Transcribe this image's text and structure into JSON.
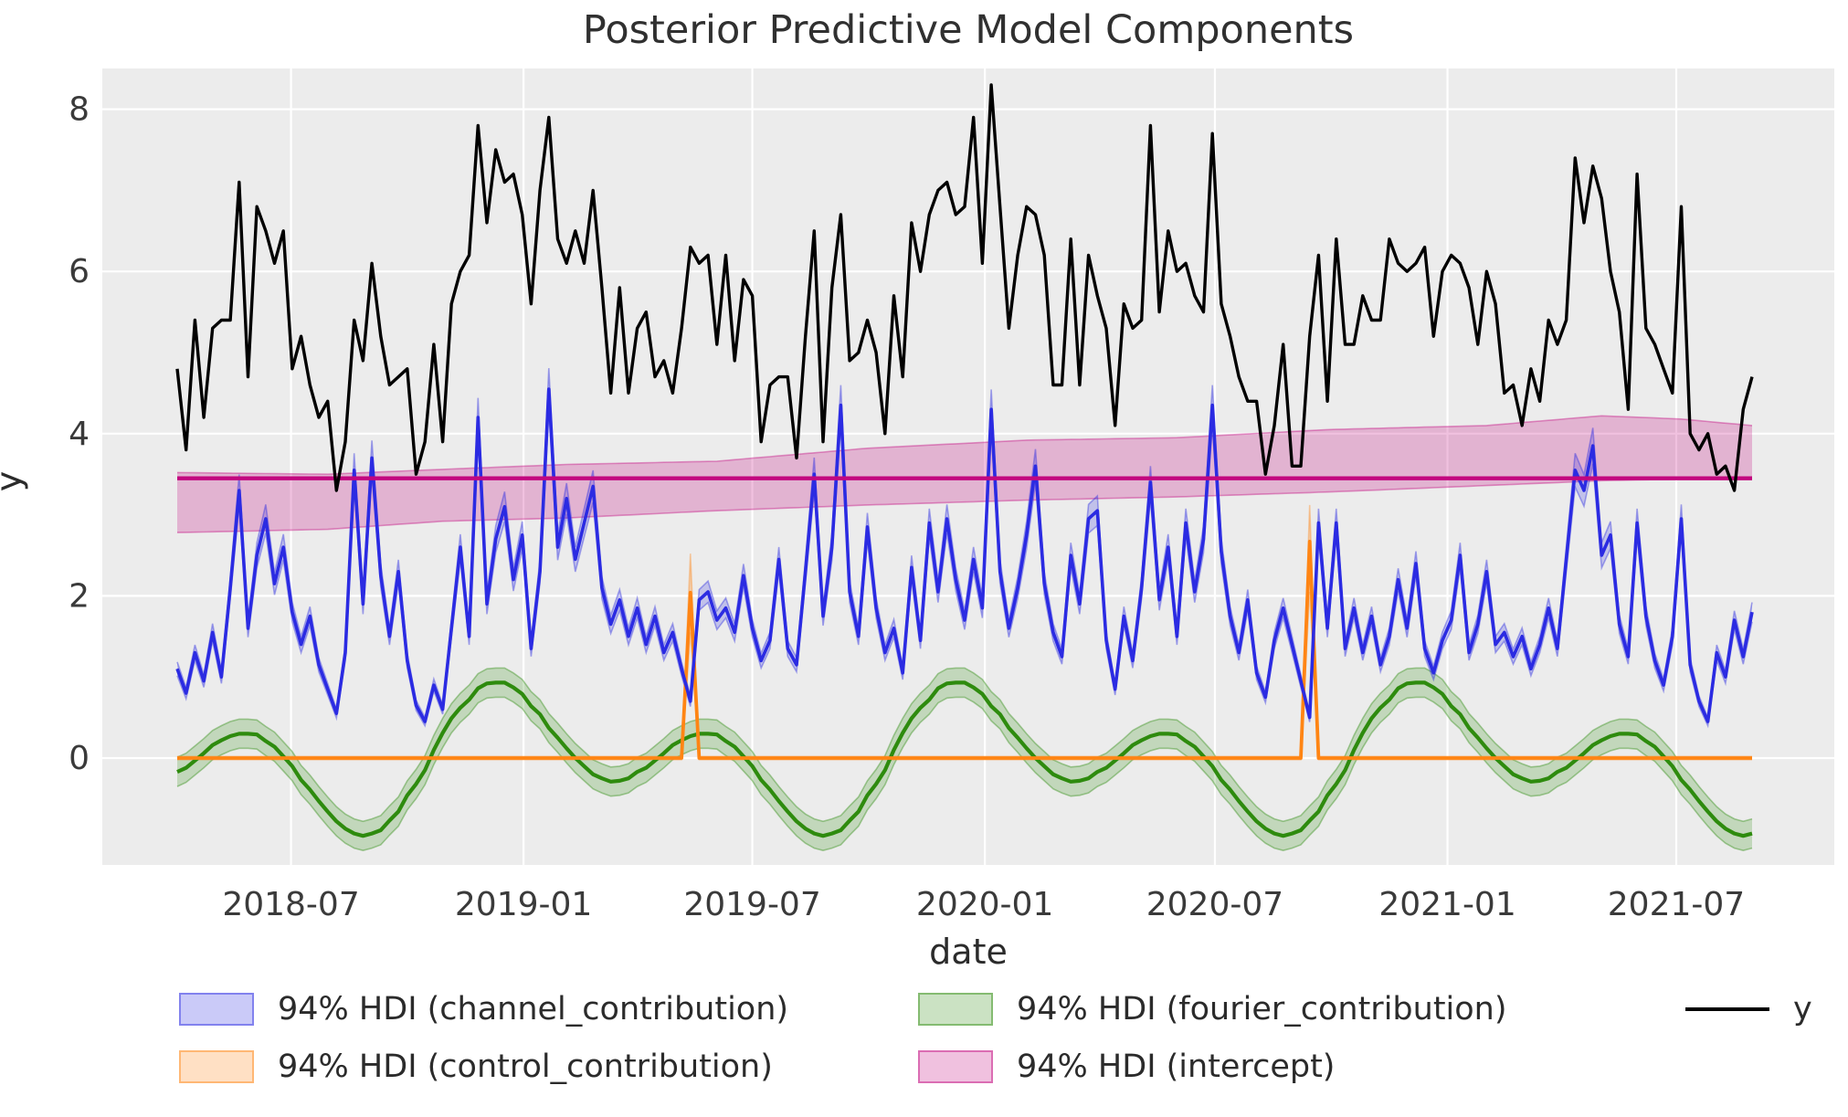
{
  "title": "Posterior Predictive Model Components",
  "xlabel": "date",
  "ylabel": "y",
  "colors": {
    "background": "#ffffff",
    "plot_background": "#ececec",
    "grid": "#ffffff",
    "y_line": "#000000",
    "channel": "#2b2be2",
    "control": "#ff8514",
    "fourier": "#2e8b0e",
    "intercept": "#c2077f",
    "text": "#2b2b2b"
  },
  "legend": {
    "items": [
      {
        "label": "94% HDI (channel_contribution)",
        "swatch": "patch",
        "color": "#2b2be2"
      },
      {
        "label": "94% HDI (control_contribution)",
        "swatch": "patch",
        "color": "#ff8514"
      },
      {
        "label": "94% HDI (fourier_contribution)",
        "swatch": "patch",
        "color": "#2e8b0e"
      },
      {
        "label": "94% HDI (intercept)",
        "swatch": "patch",
        "color": "#c2077f"
      },
      {
        "label": "y",
        "swatch": "line",
        "color": "#000000"
      }
    ]
  },
  "chart_data": {
    "type": "line",
    "title": "Posterior Predictive Model Components",
    "xlabel": "date",
    "ylabel": "y",
    "x_start_date": "2018-04-02",
    "x_freq_days": 7,
    "n_points": 179,
    "x_ticks": [
      {
        "label": "2018-07",
        "days_from_start": 90
      },
      {
        "label": "2019-01",
        "days_from_start": 274
      },
      {
        "label": "2019-07",
        "days_from_start": 455
      },
      {
        "label": "2020-01",
        "days_from_start": 639
      },
      {
        "label": "2020-07",
        "days_from_start": 821
      },
      {
        "label": "2021-01",
        "days_from_start": 1005
      },
      {
        "label": "2021-07",
        "days_from_start": 1186
      }
    ],
    "y_ticks": [
      0,
      2,
      4,
      6,
      8
    ],
    "ylim": [
      -1.32,
      8.5
    ],
    "grid": true,
    "legend_position": "below",
    "hdi_probability": "94%",
    "series": {
      "y": {
        "label": "y",
        "values": [
          4.8,
          3.8,
          5.4,
          4.2,
          5.3,
          5.4,
          5.4,
          7.1,
          4.7,
          6.8,
          6.5,
          6.1,
          6.5,
          4.8,
          5.2,
          4.6,
          4.2,
          4.4,
          3.3,
          3.9,
          5.4,
          4.9,
          6.1,
          5.2,
          4.6,
          4.7,
          4.8,
          3.5,
          3.9,
          5.1,
          3.9,
          5.6,
          6.0,
          6.2,
          7.8,
          6.6,
          7.5,
          7.1,
          7.2,
          6.7,
          5.6,
          7.0,
          7.9,
          6.4,
          6.1,
          6.5,
          6.1,
          7.0,
          5.8,
          4.5,
          5.8,
          4.5,
          5.3,
          5.5,
          4.7,
          4.9,
          4.5,
          5.3,
          6.3,
          6.1,
          6.2,
          5.1,
          6.2,
          4.9,
          5.9,
          5.7,
          3.9,
          4.6,
          4.7,
          4.7,
          3.7,
          5.2,
          6.5,
          3.9,
          5.8,
          6.7,
          4.9,
          5.0,
          5.4,
          5.0,
          4.0,
          5.7,
          4.7,
          6.6,
          6.0,
          6.7,
          7.0,
          7.1,
          6.7,
          6.8,
          7.9,
          6.1,
          8.3,
          6.8,
          5.3,
          6.2,
          6.8,
          6.7,
          6.2,
          4.6,
          4.6,
          6.4,
          4.6,
          6.2,
          5.7,
          5.3,
          4.1,
          5.6,
          5.3,
          5.4,
          7.8,
          5.5,
          6.5,
          6.0,
          6.1,
          5.7,
          5.5,
          7.7,
          5.6,
          5.2,
          4.7,
          4.4,
          4.4,
          3.5,
          4.1,
          5.1,
          3.6,
          3.6,
          5.2,
          6.2,
          4.4,
          6.4,
          5.1,
          5.1,
          5.7,
          5.4,
          5.4,
          6.4,
          6.1,
          6.0,
          6.1,
          6.3,
          5.2,
          6.0,
          6.2,
          6.1,
          5.8,
          5.1,
          6.0,
          5.6,
          4.5,
          4.6,
          4.1,
          4.8,
          4.4,
          5.4,
          5.1,
          5.4,
          7.4,
          6.6,
          7.3,
          6.9,
          6.0,
          5.5,
          4.3,
          7.2,
          5.3,
          5.1,
          4.8,
          4.5,
          6.8,
          4.0,
          3.8,
          4.0,
          3.5,
          3.6,
          3.3,
          4.3,
          4.7
        ]
      },
      "channel_contribution": {
        "label": "94% HDI (channel_contribution)",
        "mean": [
          1.1,
          0.8,
          1.3,
          0.95,
          1.55,
          1.0,
          2.1,
          3.3,
          1.6,
          2.5,
          2.95,
          2.15,
          2.6,
          1.8,
          1.4,
          1.75,
          1.15,
          0.85,
          0.55,
          1.3,
          3.55,
          1.9,
          3.7,
          2.25,
          1.5,
          2.3,
          1.2,
          0.65,
          0.45,
          0.9,
          0.6,
          1.6,
          2.6,
          1.5,
          4.2,
          1.9,
          2.7,
          3.1,
          2.2,
          2.75,
          1.35,
          2.3,
          4.55,
          2.6,
          3.2,
          2.45,
          2.9,
          3.35,
          2.1,
          1.65,
          1.95,
          1.5,
          1.85,
          1.4,
          1.75,
          1.3,
          1.55,
          1.1,
          0.7,
          1.95,
          2.05,
          1.7,
          1.85,
          1.55,
          2.25,
          1.6,
          1.2,
          1.45,
          2.45,
          1.35,
          1.15,
          2.3,
          3.5,
          1.75,
          2.6,
          4.35,
          2.05,
          1.5,
          2.85,
          1.85,
          1.3,
          1.6,
          1.05,
          2.35,
          1.45,
          2.9,
          2.05,
          2.95,
          2.2,
          1.7,
          2.45,
          1.85,
          4.3,
          2.3,
          1.6,
          2.1,
          2.75,
          3.6,
          2.15,
          1.55,
          1.25,
          2.5,
          1.9,
          2.95,
          3.05,
          1.45,
          0.85,
          1.75,
          1.2,
          2.1,
          3.4,
          1.95,
          2.6,
          1.5,
          2.9,
          2.05,
          2.7,
          4.35,
          2.55,
          1.75,
          1.3,
          1.95,
          1.05,
          0.75,
          1.45,
          1.85,
          1.4,
          0.95,
          0.5,
          2.9,
          1.6,
          2.9,
          1.35,
          1.85,
          1.3,
          1.75,
          1.15,
          1.5,
          2.2,
          1.6,
          2.4,
          1.35,
          1.05,
          1.45,
          1.7,
          2.5,
          1.3,
          1.65,
          2.3,
          1.4,
          1.55,
          1.25,
          1.5,
          1.1,
          1.4,
          1.85,
          1.35,
          2.45,
          3.55,
          3.3,
          3.85,
          2.5,
          2.75,
          1.65,
          1.25,
          2.9,
          1.75,
          1.2,
          0.9,
          1.5,
          2.95,
          1.15,
          0.7,
          0.45,
          1.3,
          1.0,
          1.7,
          1.25,
          1.8
        ],
        "hdi_halfwidth_fraction": 0.05,
        "hdi_halfwidth_offset": 0.03
      },
      "control_contribution": {
        "label": "94% HDI (control_contribution)",
        "baseline": 0.0,
        "baseline_hdi_halfwidth": 0.02,
        "spikes": [
          {
            "week_index": 58,
            "date": "2019-05-13",
            "value": 2.04,
            "hdi_lo": 1.55,
            "hdi_hi": 2.52
          },
          {
            "week_index": 128,
            "date": "2020-09-14",
            "value": 2.67,
            "hdi_lo": 2.05,
            "hdi_hi": 3.12
          }
        ]
      },
      "fourier_contribution": {
        "label": "94% HDI (fourier_contribution)",
        "mean": [
          -0.17,
          -0.12,
          -0.03,
          0.06,
          0.16,
          0.22,
          0.27,
          0.3,
          0.3,
          0.29,
          0.21,
          0.14,
          0.02,
          -0.1,
          -0.27,
          -0.39,
          -0.53,
          -0.66,
          -0.78,
          -0.87,
          -0.93,
          -0.96,
          -0.93,
          -0.89,
          -0.77,
          -0.66,
          -0.46,
          -0.32,
          -0.15,
          0.1,
          0.31,
          0.49,
          0.62,
          0.72,
          0.86,
          0.92,
          0.93,
          0.93,
          0.87,
          0.79,
          0.64,
          0.54,
          0.37,
          0.25,
          0.12,
          0.0,
          -0.1,
          -0.2,
          -0.25,
          -0.29,
          -0.28,
          -0.25,
          -0.17,
          -0.12,
          -0.03,
          0.06,
          0.16,
          0.22,
          0.27,
          0.3,
          0.3,
          0.29,
          0.21,
          0.14,
          0.02,
          -0.1,
          -0.27,
          -0.39,
          -0.53,
          -0.66,
          -0.78,
          -0.87,
          -0.93,
          -0.96,
          -0.93,
          -0.89,
          -0.77,
          -0.66,
          -0.46,
          -0.32,
          -0.15,
          0.1,
          0.31,
          0.49,
          0.62,
          0.72,
          0.86,
          0.92,
          0.93,
          0.93,
          0.87,
          0.79,
          0.64,
          0.54,
          0.37,
          0.25,
          0.12,
          0.0,
          -0.1,
          -0.2,
          -0.25,
          -0.29,
          -0.28,
          -0.25,
          -0.17,
          -0.12,
          -0.03,
          0.06,
          0.16,
          0.22,
          0.27,
          0.3,
          0.3,
          0.29,
          0.21,
          0.14,
          0.02,
          -0.1,
          -0.27,
          -0.39,
          -0.53,
          -0.66,
          -0.78,
          -0.87,
          -0.93,
          -0.96,
          -0.93,
          -0.89,
          -0.77,
          -0.66,
          -0.46,
          -0.32,
          -0.15,
          0.1,
          0.31,
          0.49,
          0.62,
          0.72,
          0.86,
          0.92,
          0.93,
          0.93,
          0.87,
          0.79,
          0.64,
          0.54,
          0.37,
          0.25,
          0.12,
          0.0,
          -0.1,
          -0.2,
          -0.25,
          -0.29,
          -0.28,
          -0.25,
          -0.17,
          -0.12,
          -0.03,
          0.06,
          0.16,
          0.22,
          0.27,
          0.3,
          0.3,
          0.29,
          0.21,
          0.14,
          0.02,
          -0.1,
          -0.27,
          -0.39,
          -0.53,
          -0.66,
          -0.78,
          -0.87,
          -0.93,
          -0.96,
          -0.93
        ],
        "hdi_halfwidth": 0.18
      },
      "intercept": {
        "label": "94% HDI (intercept)",
        "mean": 3.45,
        "hdi_anchors": [
          {
            "week_index": 0,
            "lo": 2.78,
            "hi": 3.52
          },
          {
            "week_index": 17,
            "lo": 2.82,
            "hi": 3.5
          },
          {
            "week_index": 30,
            "lo": 2.92,
            "hi": 3.56
          },
          {
            "week_index": 44,
            "lo": 2.96,
            "hi": 3.62
          },
          {
            "week_index": 61,
            "lo": 3.05,
            "hi": 3.66
          },
          {
            "week_index": 78,
            "lo": 3.12,
            "hi": 3.82
          },
          {
            "week_index": 96,
            "lo": 3.18,
            "hi": 3.92
          },
          {
            "week_index": 113,
            "lo": 3.22,
            "hi": 3.95
          },
          {
            "week_index": 130,
            "lo": 3.28,
            "hi": 4.05
          },
          {
            "week_index": 148,
            "lo": 3.36,
            "hi": 4.1
          },
          {
            "week_index": 161,
            "lo": 3.42,
            "hi": 4.22
          },
          {
            "week_index": 170,
            "lo": 3.44,
            "hi": 4.18
          },
          {
            "week_index": 178,
            "lo": 3.46,
            "hi": 4.1
          }
        ]
      }
    }
  }
}
